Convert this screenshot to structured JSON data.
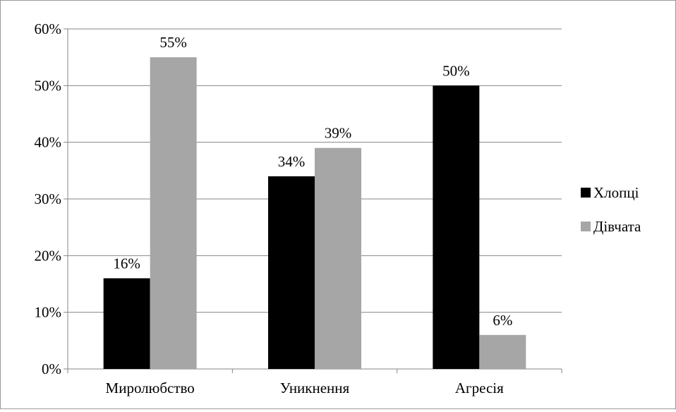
{
  "chart_data": {
    "type": "bar",
    "categories": [
      "Миролюбство",
      "Уникнення",
      "Агресія"
    ],
    "series": [
      {
        "name": "Хлопці",
        "values": [
          16,
          34,
          50
        ],
        "color": "#000000"
      },
      {
        "name": "Дівчата",
        "values": [
          55,
          39,
          6
        ],
        "color": "#a6a6a6"
      }
    ],
    "data_labels": [
      [
        "16%",
        "34%",
        "50%"
      ],
      [
        "55%",
        "39%",
        "6%"
      ]
    ],
    "yticks": [
      "0%",
      "10%",
      "20%",
      "30%",
      "40%",
      "50%",
      "60%"
    ],
    "ylim": [
      0,
      60
    ],
    "grid": true,
    "legend_position": "right",
    "title": "",
    "xlabel": "",
    "ylabel": ""
  }
}
